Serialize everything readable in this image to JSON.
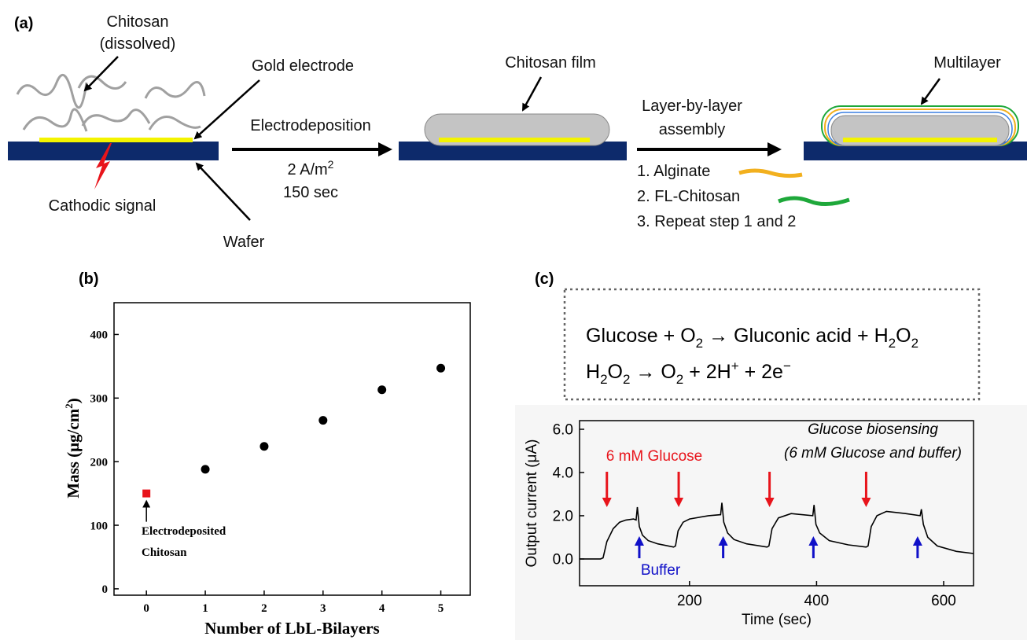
{
  "diagram": {
    "panel_label": "(a)",
    "chitosan": "Chitosan",
    "dissolved": "(dissolved)",
    "gold_electrode": "Gold electrode",
    "cathodic_signal": "Cathodic signal",
    "wafer": "Wafer",
    "electrodeposition": "Electrodeposition",
    "current_density": [
      "2 A/m",
      "2"
    ],
    "duration": "150 sec",
    "chitosan_film": "Chitosan film",
    "lbl": [
      "Layer-by-layer",
      "assembly"
    ],
    "steps": [
      "1. Alginate",
      "2. FL-Chitosan",
      "3. Repeat step 1 and 2"
    ],
    "multilayer": "Multilayer"
  },
  "chart_data": [
    {
      "type": "scatter",
      "panel_label": "(b)",
      "x_label": "Number of LbL-Bilayers",
      "y_label": [
        "Mass (μg/cm",
        "2",
        ")"
      ],
      "series": [
        {
          "color": "#e8141b",
          "marker": "square",
          "x": [
            0
          ],
          "values": [
            150
          ]
        },
        {
          "color": "#000000",
          "marker": "circle",
          "x": [
            1,
            2,
            3,
            4,
            5
          ],
          "values": [
            188,
            224,
            265,
            313,
            347
          ]
        }
      ],
      "annotation": [
        "Electrodeposited",
        "Chitosan"
      ],
      "xlim": [
        -0.55,
        5.5
      ],
      "xticks": [
        0,
        1,
        2,
        3,
        4,
        5
      ],
      "ylim": [
        -10,
        450
      ],
      "yticks": [
        0,
        100,
        200,
        300,
        400
      ]
    },
    {
      "type": "line",
      "panel_label": "(c)",
      "equations": [
        [
          "Glucose + O",
          "2",
          " → Gluconic acid + H",
          "2",
          "O",
          "2"
        ],
        [
          "H",
          "2",
          "O",
          "2",
          " → O",
          "2",
          " + 2H",
          "+",
          " + 2e",
          "−"
        ]
      ],
      "x_label": "Time (sec)",
      "y_label": "Output current (μA)",
      "color": "#000000",
      "x": [
        27,
        60,
        64,
        70,
        80,
        90,
        100,
        112,
        116,
        118,
        121,
        126,
        135,
        150,
        175,
        178,
        182,
        190,
        200,
        230,
        249,
        251,
        254,
        260,
        270,
        290,
        322,
        325,
        330,
        340,
        360,
        394,
        396,
        399,
        405,
        420,
        450,
        478,
        481,
        486,
        495,
        510,
        540,
        563,
        565,
        568,
        575,
        590,
        620,
        647
      ],
      "values": [
        0,
        0,
        0.05,
        0.8,
        1.4,
        1.7,
        1.8,
        1.85,
        1.8,
        2.4,
        1.5,
        1.1,
        0.85,
        0.7,
        0.55,
        0.6,
        1.3,
        1.7,
        1.85,
        2.0,
        2.05,
        2.6,
        1.7,
        1.2,
        0.9,
        0.7,
        0.55,
        0.6,
        1.4,
        1.9,
        2.1,
        2.0,
        2.5,
        1.6,
        1.2,
        0.85,
        0.65,
        0.55,
        0.6,
        1.5,
        2.0,
        2.2,
        2.1,
        2.0,
        2.3,
        1.6,
        1.0,
        0.6,
        0.35,
        0.25
      ],
      "glucose_injections": [
        70,
        183,
        326,
        478
      ],
      "buffer_injections": [
        121,
        253,
        395,
        559
      ],
      "glucose_label": "6 mM Glucose",
      "buffer_label": "Buffer",
      "glucose_color": "#e8141b",
      "buffer_color": "#1010c8",
      "note": [
        "Glucose biosensing",
        "(6 mM Glucose and buffer)"
      ],
      "xlim": [
        27,
        647
      ],
      "xticks": [
        200,
        400,
        600
      ],
      "ylim": [
        -1.24,
        6.4
      ],
      "yticks": [
        {
          "value": 0,
          "label": "0.0"
        },
        {
          "value": 2,
          "label": "2.0"
        },
        {
          "value": 4,
          "label": "4.0"
        },
        {
          "value": 6,
          "label": "6.0"
        }
      ]
    }
  ]
}
